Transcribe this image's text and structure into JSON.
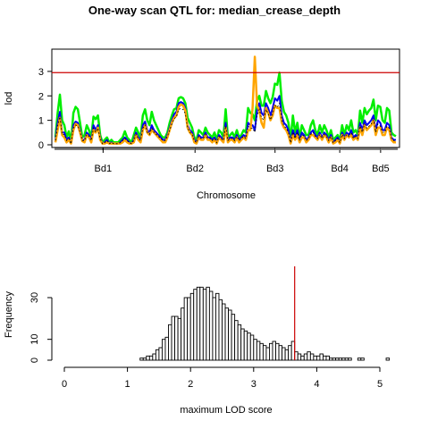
{
  "title": "One-way scan QTL for: median_crease_depth",
  "chart_data": [
    {
      "type": "line",
      "xlabel": "Chromosome",
      "ylabel": "lod",
      "ylim": [
        0,
        3.8
      ],
      "yticks": [
        0,
        1,
        2,
        3
      ],
      "chromosomes": [
        "Bd1",
        "Bd2",
        "Bd3",
        "Bd4",
        "Bd5"
      ],
      "threshold": 2.95,
      "threshold_color": "#cc0000",
      "series": [
        {
          "color": "#00ee00",
          "values": [
            0.3,
            1.3,
            2.05,
            1.0,
            0.8,
            0.3,
            0.55,
            0.1,
            1.3,
            1.55,
            1.45,
            0.9,
            0.3,
            0.4,
            0.8,
            0.6,
            0.3,
            1.15,
            1.05,
            1.2,
            0.4,
            0.1,
            0.2,
            0.3,
            0.1,
            0.2,
            0.1,
            0.1,
            0.1,
            0.2,
            0.3,
            0.55,
            0.3,
            0.2,
            0.1,
            0.4,
            0.7,
            0.5,
            0.3,
            1.2,
            1.45,
            1.0,
            0.8,
            1.35,
            1.0,
            0.8,
            0.6,
            0.4,
            0.3,
            0.3,
            0.5,
            0.9,
            1.2,
            1.45,
            1.5,
            1.9,
            1.95,
            1.9,
            1.7,
            1.1,
            0.9,
            0.7,
            0.3,
            0.2,
            0.6,
            0.5,
            0.4,
            0.7,
            0.5,
            0.4,
            0.3,
            0.5,
            0.2,
            0.6,
            0.5,
            0.3,
            1.45,
            0.3,
            0.4,
            0.5,
            0.3,
            0.6,
            0.3,
            0.4,
            0.6,
            0.5,
            1.5,
            1.3,
            1.25,
            1.0,
            1.8,
            2.0,
            1.6,
            1.6,
            2.2,
            1.9,
            1.7,
            1.95,
            2.5,
            2.45,
            2.95,
            1.8,
            1.35,
            1.2,
            0.9,
            0.2,
            1.2,
            0.5,
            0.9,
            0.3,
            0.8,
            0.6,
            0.4,
            0.4,
            0.8,
            1.0,
            0.6,
            0.4,
            0.8,
            0.5,
            0.8,
            0.6,
            0.3,
            0.6,
            0.2,
            0.3,
            0.4,
            0.2,
            0.8,
            0.4,
            0.8,
            0.6,
            1.0,
            0.5,
            0.6,
            0.4,
            1.4,
            0.9,
            1.5,
            1.25,
            1.4,
            1.5,
            1.85,
            1.0,
            1.6,
            1.55,
            1.0,
            0.9,
            1.5,
            1.4,
            0.5,
            0.4,
            0.35
          ]
        },
        {
          "color": "#0000ee",
          "values": [
            0.2,
            0.9,
            1.35,
            0.5,
            0.5,
            0.2,
            0.3,
            0.05,
            0.8,
            0.95,
            0.9,
            0.6,
            0.2,
            0.2,
            0.5,
            0.4,
            0.2,
            0.8,
            0.6,
            0.8,
            0.3,
            0.05,
            0.1,
            0.2,
            0.05,
            0.1,
            0.05,
            0.05,
            0.05,
            0.1,
            0.2,
            0.3,
            0.2,
            0.1,
            0.05,
            0.2,
            0.5,
            0.3,
            0.2,
            0.8,
            0.95,
            0.6,
            0.5,
            0.8,
            0.6,
            0.5,
            0.4,
            0.3,
            0.2,
            0.2,
            0.4,
            0.7,
            1.0,
            1.25,
            1.35,
            1.7,
            1.75,
            1.7,
            1.5,
            0.8,
            0.6,
            0.5,
            0.2,
            0.1,
            0.4,
            0.3,
            0.3,
            0.5,
            0.3,
            0.3,
            0.2,
            0.3,
            0.1,
            0.4,
            0.3,
            0.2,
            0.9,
            0.2,
            0.3,
            0.3,
            0.2,
            0.4,
            0.2,
            0.3,
            0.4,
            0.3,
            0.9,
            0.8,
            0.8,
            0.6,
            1.4,
            1.7,
            1.3,
            1.2,
            1.7,
            1.5,
            1.2,
            1.5,
            1.9,
            1.8,
            2.0,
            1.2,
            0.9,
            0.8,
            0.6,
            0.1,
            0.6,
            0.3,
            0.6,
            0.2,
            0.5,
            0.4,
            0.2,
            0.3,
            0.5,
            0.6,
            0.4,
            0.3,
            0.5,
            0.3,
            0.5,
            0.4,
            0.2,
            0.4,
            0.1,
            0.2,
            0.3,
            0.1,
            0.5,
            0.3,
            0.5,
            0.4,
            0.6,
            0.3,
            0.4,
            0.3,
            0.9,
            0.6,
            1.0,
            0.8,
            0.9,
            1.0,
            1.2,
            0.6,
            1.0,
            0.9,
            0.6,
            0.6,
            0.9,
            0.8,
            0.3,
            0.2,
            0.2
          ]
        },
        {
          "color": "#ffa500",
          "values": [
            0.1,
            0.6,
            1.1,
            0.4,
            0.3,
            0.1,
            0.2,
            0.05,
            0.6,
            0.85,
            0.8,
            0.5,
            0.15,
            0.1,
            0.4,
            0.3,
            0.1,
            0.6,
            0.5,
            0.7,
            0.2,
            0.05,
            0.05,
            0.1,
            0.05,
            0.05,
            0.05,
            0.05,
            0.05,
            0.05,
            0.1,
            0.2,
            0.1,
            0.05,
            0.05,
            0.1,
            0.4,
            0.2,
            0.1,
            0.6,
            0.8,
            0.5,
            0.4,
            0.6,
            0.5,
            0.4,
            0.3,
            0.2,
            0.1,
            0.1,
            0.3,
            0.6,
            0.9,
            1.1,
            1.2,
            1.55,
            1.65,
            1.6,
            1.4,
            0.7,
            0.5,
            0.4,
            0.1,
            0.05,
            0.3,
            0.2,
            0.2,
            0.4,
            0.2,
            0.2,
            0.1,
            0.2,
            0.05,
            0.3,
            0.2,
            0.1,
            0.7,
            0.1,
            0.2,
            0.2,
            0.1,
            0.3,
            0.1,
            0.2,
            0.3,
            0.2,
            0.6,
            0.6,
            1.5,
            3.6,
            1.6,
            1.4,
            0.9,
            0.7,
            1.5,
            1.3,
            1.0,
            1.2,
            1.6,
            1.5,
            1.5,
            0.9,
            0.7,
            0.6,
            0.4,
            0.05,
            0.4,
            0.2,
            0.4,
            0.1,
            0.3,
            0.3,
            0.1,
            0.2,
            0.4,
            0.4,
            0.3,
            0.2,
            0.4,
            0.2,
            0.4,
            0.3,
            0.1,
            0.3,
            0.05,
            0.1,
            0.2,
            0.05,
            0.4,
            0.2,
            0.4,
            0.3,
            0.4,
            0.2,
            0.3,
            0.2,
            0.7,
            0.4,
            0.8,
            0.6,
            0.7,
            0.8,
            1.0,
            0.4,
            0.7,
            0.7,
            0.4,
            0.4,
            0.7,
            0.6,
            0.2,
            0.1,
            0.1
          ]
        }
      ]
    },
    {
      "type": "bar",
      "xlabel": "maximum LOD score",
      "ylabel": "Frequency",
      "xlim": [
        0,
        5.2
      ],
      "xticks": [
        0,
        1,
        2,
        3,
        4,
        5
      ],
      "yticks": [
        0,
        10,
        30
      ],
      "bin_start": 1.2,
      "bin_width": 0.05,
      "counts": [
        1,
        1,
        2,
        2,
        3,
        5,
        6,
        10,
        11,
        17,
        21,
        21,
        20,
        25,
        30,
        30,
        32,
        34,
        35,
        35,
        34,
        35,
        33,
        30,
        32,
        29,
        27,
        25,
        24,
        22,
        19,
        17,
        15,
        14,
        13,
        12,
        10,
        9,
        8,
        7,
        6,
        8,
        9,
        8,
        7,
        6,
        5,
        7,
        9,
        4,
        3,
        2,
        3,
        4,
        3,
        2,
        2,
        3,
        2,
        2,
        1,
        1,
        1,
        1,
        1,
        1,
        1,
        0,
        0,
        1,
        1,
        0,
        0,
        0,
        0,
        0,
        0,
        0,
        1
      ],
      "ylim": [
        0,
        38
      ],
      "threshold": 3.65,
      "threshold_color": "#cc0000"
    }
  ]
}
